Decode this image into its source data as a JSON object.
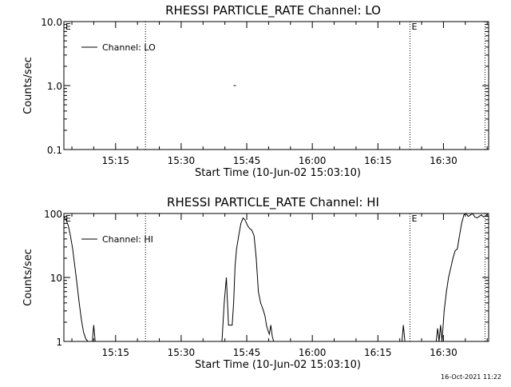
{
  "chart_data": [
    {
      "type": "line",
      "title": "RHESSI PARTICLE_RATE Channel: LO",
      "xlabel": "Start Time (10-Jun-02 15:03:10)",
      "ylabel": "Counts/sec",
      "yscale": "log",
      "ylim": [
        0.1,
        10.0
      ],
      "yticks": [
        "10.0",
        "1.0",
        "0.1"
      ],
      "yticks_values": [
        10,
        1,
        0.1
      ],
      "xlim": [
        "15:03:10",
        "16:40:20"
      ],
      "xticks": [
        "15:15",
        "15:30",
        "15:45",
        "16:00",
        "16:15",
        "16:30"
      ],
      "grid": false,
      "legend": "top-left",
      "series": [
        {
          "name": "Channel: LO",
          "color": "#000000",
          "x": [
            "15:42:00",
            "15:42:30"
          ],
          "y": [
            1.0,
            1.0
          ]
        }
      ],
      "annotations": [
        {
          "type": "vline",
          "x": "15:03:10",
          "style": "dotted",
          "label": "E"
        },
        {
          "type": "vline",
          "x": "15:21:50",
          "style": "dotted",
          "label": ""
        },
        {
          "type": "vline",
          "x": "16:22:20",
          "style": "dotted",
          "label": "E"
        },
        {
          "type": "vline",
          "x": "16:39:30",
          "style": "dotted",
          "label": ""
        }
      ]
    },
    {
      "type": "line",
      "title": "RHESSI PARTICLE_RATE Channel: HI",
      "xlabel": "Start Time (10-Jun-02 15:03:10)",
      "ylabel": "Counts/sec",
      "yscale": "log",
      "ylim": [
        1,
        100
      ],
      "yticks": [
        "100",
        "10",
        "1"
      ],
      "yticks_values": [
        100,
        10,
        1
      ],
      "xlim": [
        "15:03:10",
        "16:40:20"
      ],
      "xticks": [
        "15:15",
        "15:30",
        "15:45",
        "16:00",
        "16:15",
        "16:30"
      ],
      "grid": false,
      "legend": "top-left",
      "series": [
        {
          "name": "Channel: HI",
          "color": "#000000",
          "segments": [
            {
              "x": [
                "15:03:10",
                "15:03:40",
                "15:04:10",
                "15:04:40",
                "15:05:10",
                "15:05:40",
                "15:06:10",
                "15:06:40",
                "15:07:10",
                "15:07:40",
                "15:08:10",
                "15:08:40",
                "15:09:10"
              ],
              "y": [
                90,
                80,
                65,
                45,
                28,
                15,
                8,
                4,
                2.2,
                1.4,
                1.1,
                1.0,
                1.0
              ]
            },
            {
              "x": [
                "15:09:40",
                "15:10:00",
                "15:10:20"
              ],
              "y": [
                1.0,
                1.8,
                1.0
              ]
            },
            {
              "x": [
                "15:39:20",
                "15:39:50",
                "15:40:20",
                "15:40:50",
                "15:41:20",
                "15:41:40",
                "15:42:00",
                "15:42:20",
                "15:42:40",
                "15:43:10",
                "15:43:40",
                "15:44:10",
                "15:44:40",
                "15:45:10",
                "15:45:40",
                "15:46:10",
                "15:46:40",
                "15:47:10",
                "15:47:40",
                "15:48:10",
                "15:48:30",
                "15:48:50",
                "15:49:10",
                "15:49:30",
                "15:49:50",
                "15:50:10",
                "15:50:30",
                "15:50:50",
                "15:51:10"
              ],
              "y": [
                1.0,
                4.0,
                10,
                1.8,
                1.8,
                1.8,
                4.0,
                15,
                28,
                45,
                70,
                85,
                78,
                65,
                58,
                55,
                45,
                20,
                6,
                4,
                3.5,
                3,
                2.5,
                1.8,
                1.5,
                1.3,
                1.8,
                1.2,
                1.0
              ]
            },
            {
              "x": [
                "16:20:30",
                "16:20:50",
                "16:21:10"
              ],
              "y": [
                1.0,
                1.8,
                1.0
              ]
            },
            {
              "x": [
                "16:28:20",
                "16:28:40",
                "16:29:00",
                "16:29:20",
                "16:29:40"
              ],
              "y": [
                1.0,
                1.6,
                1.0,
                1.8,
                1.0
              ]
            },
            {
              "x": [
                "16:29:40",
                "16:30:10",
                "16:30:40",
                "16:31:10",
                "16:31:40",
                "16:32:10",
                "16:32:40",
                "16:33:10",
                "16:33:40",
                "16:34:10",
                "16:34:40",
                "16:35:10",
                "16:35:40",
                "16:36:10",
                "16:36:40",
                "16:37:10",
                "16:37:40",
                "16:38:10",
                "16:38:40",
                "16:39:10",
                "16:39:40",
                "16:40:10"
              ],
              "y": [
                1.0,
                3,
                6,
                10,
                14,
                20,
                26,
                28,
                45,
                70,
                95,
                100,
                90,
                95,
                100,
                88,
                85,
                90,
                95,
                88,
                92,
                100
              ]
            }
          ]
        }
      ],
      "annotations": [
        {
          "type": "vline",
          "x": "15:03:10",
          "style": "dotted",
          "label": "E"
        },
        {
          "type": "vline",
          "x": "15:21:50",
          "style": "dotted",
          "label": ""
        },
        {
          "type": "vline",
          "x": "16:22:20",
          "style": "dotted",
          "label": "E"
        },
        {
          "type": "vline",
          "x": "16:39:30",
          "style": "dotted",
          "label": ""
        }
      ]
    }
  ],
  "timestamp": "16-Oct-2021 11:22"
}
